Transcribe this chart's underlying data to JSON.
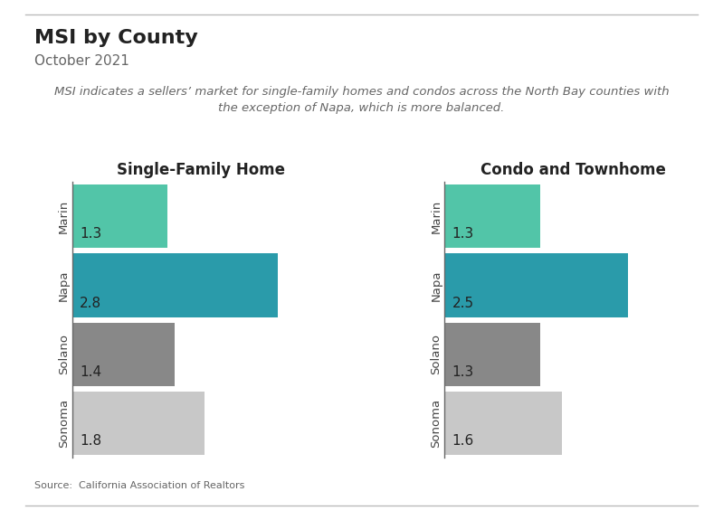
{
  "title": "MSI by County",
  "subtitle": "October 2021",
  "annotation": "MSI indicates a sellers’ market for single-family homes and condos across the North Bay counties with\nthe exception of Napa, which is more balanced.",
  "source": "Source:  California Association of Realtors",
  "counties": [
    "Marin",
    "Napa",
    "Solano",
    "Sonoma"
  ],
  "sfh_values": [
    1.3,
    2.8,
    1.4,
    1.8
  ],
  "condo_values": [
    1.3,
    2.5,
    1.3,
    1.6
  ],
  "sfh_title": "Single-Family Home",
  "condo_title": "Condo and Townhome",
  "bar_colors_sfh": [
    "#52c5a8",
    "#2a9baa",
    "#888888",
    "#c8c8c8"
  ],
  "bar_colors_condo": [
    "#52c5a8",
    "#2a9baa",
    "#888888",
    "#c8c8c8"
  ],
  "xlim": [
    0,
    3.5
  ],
  "background_color": "#ffffff",
  "title_fontsize": 16,
  "subtitle_fontsize": 11,
  "annotation_fontsize": 9.5,
  "axis_title_fontsize": 12,
  "label_fontsize": 11,
  "ytick_fontsize": 9.5,
  "source_fontsize": 8
}
